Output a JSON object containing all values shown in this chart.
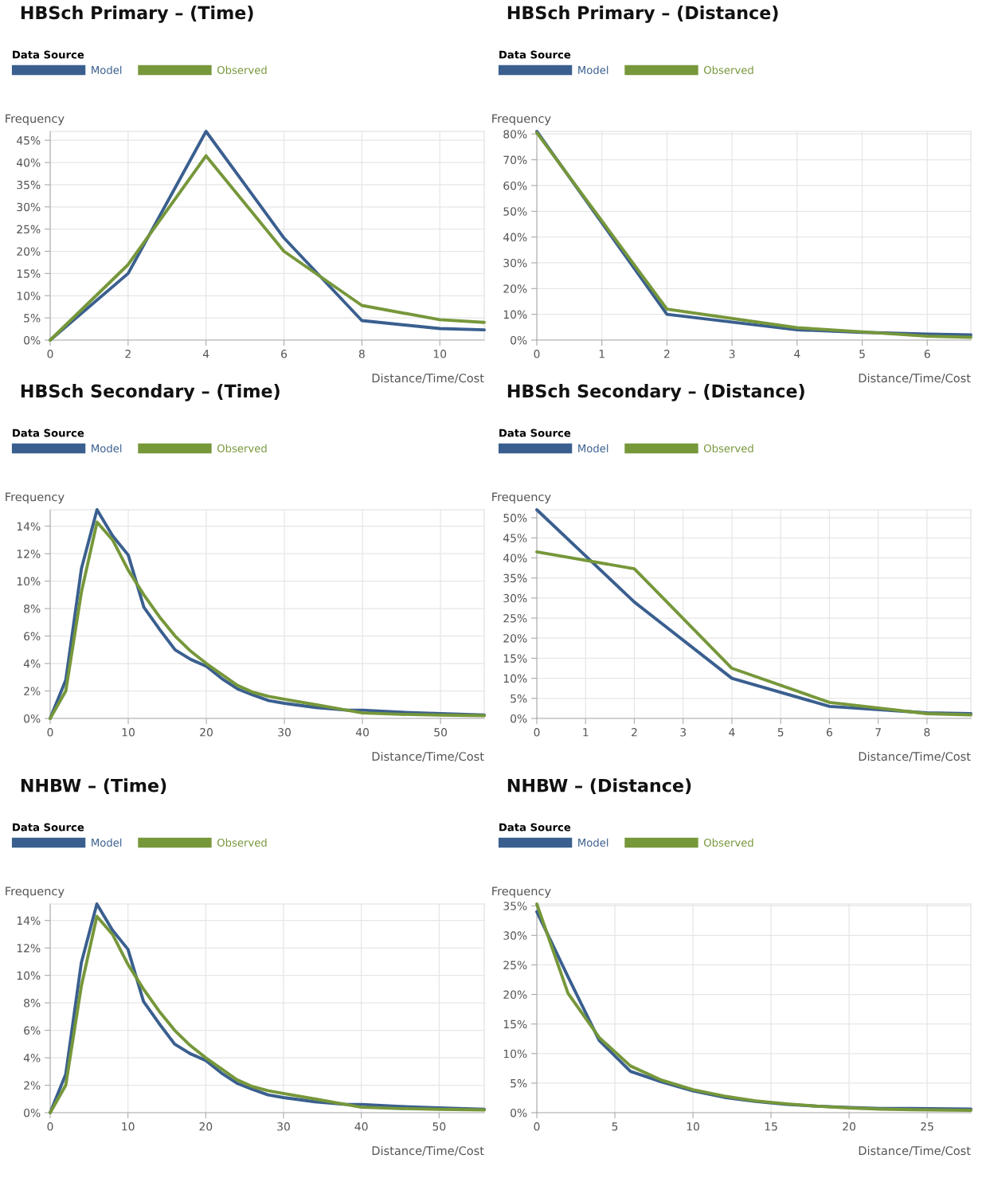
{
  "chart_data": [
    {
      "type": "line",
      "title": "HBSch Primary – (Time)",
      "xlabel": "Distance/Time/Cost",
      "ylabel": "Frequency",
      "legend_title": "Data Source",
      "legend": "top left",
      "grid": true,
      "line_style": "solid",
      "xlim": [
        0,
        11.14
      ],
      "xticks": [
        0,
        2,
        4,
        6,
        8,
        10
      ],
      "ylim": [
        0,
        47
      ],
      "yticks": [
        {
          "value": 0,
          "label": "0%"
        },
        {
          "value": 5,
          "label": "5%"
        },
        {
          "value": 10,
          "label": "10%"
        },
        {
          "value": 15,
          "label": "15%"
        },
        {
          "value": 20,
          "label": "20%"
        },
        {
          "value": 25,
          "label": "25%"
        },
        {
          "value": 30,
          "label": "30%"
        },
        {
          "value": 35,
          "label": "35%"
        },
        {
          "value": 40,
          "label": "40%"
        },
        {
          "value": 45,
          "label": "45%"
        }
      ],
      "series": [
        {
          "name": "Model",
          "color": "#3a5f8f",
          "x": [
            0,
            2,
            4,
            6,
            8,
            10,
            11.14
          ],
          "values": [
            0,
            15,
            47,
            23,
            4.4,
            2.6,
            2.3
          ]
        },
        {
          "name": "Observed",
          "color": "#76973a",
          "x": [
            0,
            2,
            4,
            6,
            8,
            10,
            11.14
          ],
          "values": [
            0,
            17,
            41.5,
            20,
            7.8,
            4.6,
            4.0
          ]
        }
      ]
    },
    {
      "type": "line",
      "title": "HBSch Primary – (Distance)",
      "xlabel": "Distance/Time/Cost",
      "ylabel": "Frequency",
      "legend_title": "Data Source",
      "legend": "top left",
      "grid": true,
      "line_style": "solid",
      "xlim": [
        0,
        6.67
      ],
      "xticks": [
        0,
        1,
        2,
        3,
        4,
        5,
        6
      ],
      "ylim": [
        0,
        81
      ],
      "yticks": [
        {
          "value": 0,
          "label": "0%"
        },
        {
          "value": 10,
          "label": "10%"
        },
        {
          "value": 20,
          "label": "20%"
        },
        {
          "value": 30,
          "label": "30%"
        },
        {
          "value": 40,
          "label": "40%"
        },
        {
          "value": 50,
          "label": "50%"
        },
        {
          "value": 60,
          "label": "60%"
        },
        {
          "value": 70,
          "label": "70%"
        },
        {
          "value": 80,
          "label": "80%"
        }
      ],
      "series": [
        {
          "name": "Model",
          "color": "#3a5f8f",
          "x": [
            0,
            2,
            4,
            5,
            6,
            6.67
          ],
          "values": [
            81,
            10,
            4,
            3,
            2.3,
            2.0
          ]
        },
        {
          "name": "Observed",
          "color": "#76973a",
          "x": [
            0,
            2,
            4,
            5,
            6,
            6.67
          ],
          "values": [
            80.5,
            12,
            4.8,
            3.2,
            1.5,
            1.1
          ]
        }
      ]
    },
    {
      "type": "line",
      "title": "HBSch Secondary – (Time)",
      "xlabel": "Distance/Time/Cost",
      "ylabel": "Frequency",
      "legend_title": "Data Source",
      "legend": "top left",
      "grid": true,
      "line_style": "solid",
      "xlim": [
        0,
        55.6
      ],
      "xticks": [
        0,
        10,
        20,
        30,
        40,
        50
      ],
      "ylim": [
        0,
        15.2
      ],
      "yticks": [
        {
          "value": 0,
          "label": "0%"
        },
        {
          "value": 2,
          "label": "2%"
        },
        {
          "value": 4,
          "label": "4%"
        },
        {
          "value": 6,
          "label": "6%"
        },
        {
          "value": 8,
          "label": "8%"
        },
        {
          "value": 10,
          "label": "10%"
        },
        {
          "value": 12,
          "label": "12%"
        },
        {
          "value": 14,
          "label": "14%"
        }
      ],
      "series": [
        {
          "name": "Model",
          "color": "#3a5f8f",
          "x": [
            0,
            2,
            4,
            6,
            8,
            10,
            12,
            14,
            16,
            18,
            20,
            22,
            24,
            26,
            28,
            30,
            34,
            38,
            40,
            45,
            50,
            55.6
          ],
          "values": [
            0,
            2.8,
            10.9,
            15.2,
            13.3,
            11.9,
            8.1,
            6.5,
            5.0,
            4.3,
            3.8,
            2.9,
            2.15,
            1.7,
            1.3,
            1.1,
            0.8,
            0.6,
            0.6,
            0.45,
            0.35,
            0.25
          ]
        },
        {
          "name": "Observed",
          "color": "#76973a",
          "x": [
            0,
            2,
            4,
            6,
            8,
            10,
            12,
            14,
            16,
            18,
            20,
            22,
            24,
            26,
            28,
            30,
            34,
            38,
            40,
            45,
            50,
            55.6
          ],
          "values": [
            0,
            2.0,
            9.2,
            14.3,
            13.0,
            10.8,
            9.0,
            7.4,
            6.0,
            4.9,
            4.0,
            3.2,
            2.4,
            1.9,
            1.6,
            1.4,
            1.0,
            0.6,
            0.4,
            0.3,
            0.25,
            0.2
          ]
        }
      ]
    },
    {
      "type": "line",
      "title": "HBSch Secondary – (Distance)",
      "xlabel": "Distance/Time/Cost",
      "ylabel": "Frequency",
      "legend_title": "Data Source",
      "legend": "top left",
      "grid": true,
      "line_style": "solid",
      "xlim": [
        0,
        8.9
      ],
      "xticks": [
        0,
        1,
        2,
        3,
        4,
        5,
        6,
        7,
        8
      ],
      "ylim": [
        0,
        52
      ],
      "yticks": [
        {
          "value": 0,
          "label": "0%"
        },
        {
          "value": 5,
          "label": "5%"
        },
        {
          "value": 10,
          "label": "10%"
        },
        {
          "value": 15,
          "label": "15%"
        },
        {
          "value": 20,
          "label": "20%"
        },
        {
          "value": 25,
          "label": "25%"
        },
        {
          "value": 30,
          "label": "30%"
        },
        {
          "value": 35,
          "label": "35%"
        },
        {
          "value": 40,
          "label": "40%"
        },
        {
          "value": 45,
          "label": "45%"
        },
        {
          "value": 50,
          "label": "50%"
        }
      ],
      "series": [
        {
          "name": "Model",
          "color": "#3a5f8f",
          "x": [
            0,
            2,
            4,
            6,
            8,
            8.9
          ],
          "values": [
            52,
            29,
            10,
            3,
            1.4,
            1.2
          ]
        },
        {
          "name": "Observed",
          "color": "#76973a",
          "x": [
            0,
            2,
            4,
            6,
            8,
            8.9
          ],
          "values": [
            41.5,
            37.3,
            12.5,
            4,
            1.2,
            0.9
          ]
        }
      ]
    },
    {
      "type": "line",
      "title": "NHBW – (Time)",
      "xlabel": "Distance/Time/Cost",
      "ylabel": "Frequency",
      "legend_title": "Data Source",
      "legend": "top left",
      "grid": true,
      "line_style": "solid",
      "xlim": [
        0,
        55.8
      ],
      "xticks": [
        0,
        10,
        20,
        30,
        40,
        50
      ],
      "ylim": [
        0,
        15.2
      ],
      "yticks": [
        {
          "value": 0,
          "label": "0%"
        },
        {
          "value": 2,
          "label": "2%"
        },
        {
          "value": 4,
          "label": "4%"
        },
        {
          "value": 6,
          "label": "6%"
        },
        {
          "value": 8,
          "label": "8%"
        },
        {
          "value": 10,
          "label": "10%"
        },
        {
          "value": 12,
          "label": "12%"
        },
        {
          "value": 14,
          "label": "14%"
        }
      ],
      "series": [
        {
          "name": "Model",
          "color": "#3a5f8f",
          "x": [
            0,
            2,
            4,
            6,
            8,
            10,
            12,
            14,
            16,
            18,
            20,
            22,
            24,
            26,
            28,
            30,
            34,
            38,
            40,
            45,
            50,
            55.8
          ],
          "values": [
            0,
            2.8,
            10.9,
            15.2,
            13.3,
            11.9,
            8.1,
            6.5,
            5.0,
            4.3,
            3.8,
            2.9,
            2.15,
            1.7,
            1.3,
            1.1,
            0.8,
            0.6,
            0.6,
            0.45,
            0.35,
            0.25
          ]
        },
        {
          "name": "Observed",
          "color": "#76973a",
          "x": [
            0,
            2,
            4,
            6,
            8,
            10,
            12,
            14,
            16,
            18,
            20,
            22,
            24,
            26,
            28,
            30,
            34,
            38,
            40,
            45,
            50,
            55.8
          ],
          "values": [
            0,
            2.0,
            9.2,
            14.3,
            13.0,
            10.8,
            9.0,
            7.4,
            6.0,
            4.9,
            4.0,
            3.2,
            2.4,
            1.9,
            1.6,
            1.4,
            1.0,
            0.6,
            0.4,
            0.3,
            0.25,
            0.2
          ]
        }
      ]
    },
    {
      "type": "line",
      "title": "NHBW – (Distance)",
      "xlabel": "Distance/Time/Cost",
      "ylabel": "Frequency",
      "legend_title": "Data Source",
      "legend": "top left",
      "grid": true,
      "line_style": "solid",
      "xlim": [
        0,
        27.8
      ],
      "xticks": [
        0,
        5,
        10,
        15,
        20,
        25
      ],
      "ylim": [
        0,
        35.3
      ],
      "yticks": [
        {
          "value": 0,
          "label": "0%"
        },
        {
          "value": 5,
          "label": "5%"
        },
        {
          "value": 10,
          "label": "10%"
        },
        {
          "value": 15,
          "label": "15%"
        },
        {
          "value": 20,
          "label": "20%"
        },
        {
          "value": 25,
          "label": "25%"
        },
        {
          "value": 30,
          "label": "30%"
        },
        {
          "value": 35,
          "label": "35%"
        }
      ],
      "series": [
        {
          "name": "Model",
          "color": "#3a5f8f",
          "x": [
            0,
            2,
            4,
            6,
            8,
            10,
            12,
            14,
            16,
            18,
            20,
            22,
            24,
            27.8
          ],
          "values": [
            34,
            23,
            12.2,
            7,
            5.2,
            3.7,
            2.6,
            1.9,
            1.4,
            1.1,
            0.9,
            0.7,
            0.7,
            0.6
          ]
        },
        {
          "name": "Observed",
          "color": "#76973a",
          "x": [
            0,
            2,
            4,
            6,
            8,
            10,
            12,
            14,
            16,
            18,
            20,
            22,
            24,
            27.8
          ],
          "values": [
            35.3,
            20.2,
            12.7,
            7.9,
            5.5,
            3.9,
            2.8,
            2.0,
            1.5,
            1.1,
            0.8,
            0.6,
            0.5,
            0.4
          ]
        }
      ]
    }
  ]
}
